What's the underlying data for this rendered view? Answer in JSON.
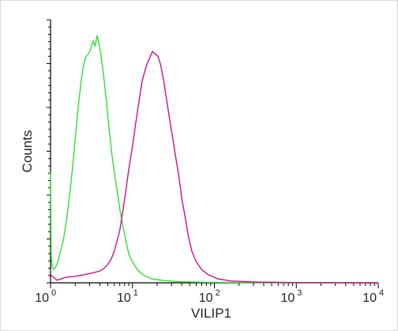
{
  "chart_data": {
    "type": "line",
    "title": "",
    "xlabel": "VILIP1",
    "ylabel": "Counts",
    "xscale": "log",
    "xlim": [
      1,
      10000
    ],
    "ylim": [
      0,
      1
    ],
    "x_ticks": [
      {
        "base": "10",
        "exp": "0",
        "value": 1
      },
      {
        "base": "10",
        "exp": "1",
        "value": 10
      },
      {
        "base": "10",
        "exp": "2",
        "value": 100
      },
      {
        "base": "10",
        "exp": "3",
        "value": 1000
      },
      {
        "base": "10",
        "exp": "4",
        "value": 10000
      }
    ],
    "y_ticks_labeled": false,
    "grid": false,
    "legend": "none",
    "series": [
      {
        "color": "#33dd33",
        "points": [
          [
            1.0,
            0.42
          ],
          [
            1.02,
            0.1
          ],
          [
            1.05,
            0.06
          ],
          [
            1.1,
            0.05
          ],
          [
            1.2,
            0.07
          ],
          [
            1.3,
            0.11
          ],
          [
            1.45,
            0.17
          ],
          [
            1.6,
            0.26
          ],
          [
            1.75,
            0.36
          ],
          [
            1.9,
            0.47
          ],
          [
            2.05,
            0.58
          ],
          [
            2.2,
            0.68
          ],
          [
            2.35,
            0.76
          ],
          [
            2.5,
            0.82
          ],
          [
            2.7,
            0.86
          ],
          [
            2.9,
            0.87
          ],
          [
            3.1,
            0.89
          ],
          [
            3.3,
            0.92
          ],
          [
            3.5,
            0.9
          ],
          [
            3.7,
            0.94
          ],
          [
            3.9,
            0.91
          ],
          [
            4.1,
            0.87
          ],
          [
            4.4,
            0.8
          ],
          [
            4.8,
            0.69
          ],
          [
            5.2,
            0.58
          ],
          [
            5.6,
            0.49
          ],
          [
            6.0,
            0.42
          ],
          [
            6.5,
            0.35
          ],
          [
            7.0,
            0.28
          ],
          [
            7.6,
            0.22
          ],
          [
            8.3,
            0.16
          ],
          [
            9.0,
            0.11
          ],
          [
            10.0,
            0.08
          ],
          [
            11.5,
            0.05
          ],
          [
            13.5,
            0.03
          ],
          [
            17.0,
            0.015
          ],
          [
            25.0,
            0.008
          ],
          [
            40.0,
            0.004
          ],
          [
            80.0,
            0.002
          ],
          [
            200.0,
            0.001
          ],
          [
            1000.0,
            0.0
          ],
          [
            10000.0,
            0.0
          ]
        ]
      },
      {
        "color": "#cc1188",
        "points": [
          [
            1.0,
            0.03
          ],
          [
            1.2,
            0.01
          ],
          [
            1.5,
            0.02
          ],
          [
            2.0,
            0.025
          ],
          [
            2.5,
            0.03
          ],
          [
            3.0,
            0.035
          ],
          [
            3.5,
            0.04
          ],
          [
            4.0,
            0.045
          ],
          [
            4.5,
            0.055
          ],
          [
            5.0,
            0.07
          ],
          [
            5.5,
            0.09
          ],
          [
            6.0,
            0.12
          ],
          [
            6.5,
            0.16
          ],
          [
            7.0,
            0.2
          ],
          [
            7.6,
            0.27
          ],
          [
            8.3,
            0.35
          ],
          [
            9.0,
            0.43
          ],
          [
            10.0,
            0.52
          ],
          [
            11.0,
            0.61
          ],
          [
            12.0,
            0.69
          ],
          [
            13.0,
            0.76
          ],
          [
            14.0,
            0.8
          ],
          [
            15.0,
            0.83
          ],
          [
            16.0,
            0.85
          ],
          [
            17.5,
            0.88
          ],
          [
            19.0,
            0.87
          ],
          [
            20.5,
            0.86
          ],
          [
            22.0,
            0.83
          ],
          [
            24.0,
            0.77
          ],
          [
            26.0,
            0.7
          ],
          [
            28.5,
            0.62
          ],
          [
            31.0,
            0.55
          ],
          [
            34.0,
            0.47
          ],
          [
            37.0,
            0.4
          ],
          [
            40.0,
            0.32
          ],
          [
            44.0,
            0.25
          ],
          [
            48.0,
            0.18
          ],
          [
            53.0,
            0.12
          ],
          [
            60.0,
            0.08
          ],
          [
            70.0,
            0.05
          ],
          [
            85.0,
            0.03
          ],
          [
            110.0,
            0.015
          ],
          [
            160.0,
            0.007
          ],
          [
            300.0,
            0.003
          ],
          [
            1000.0,
            0.001
          ],
          [
            10000.0,
            0.0
          ]
        ]
      }
    ]
  }
}
